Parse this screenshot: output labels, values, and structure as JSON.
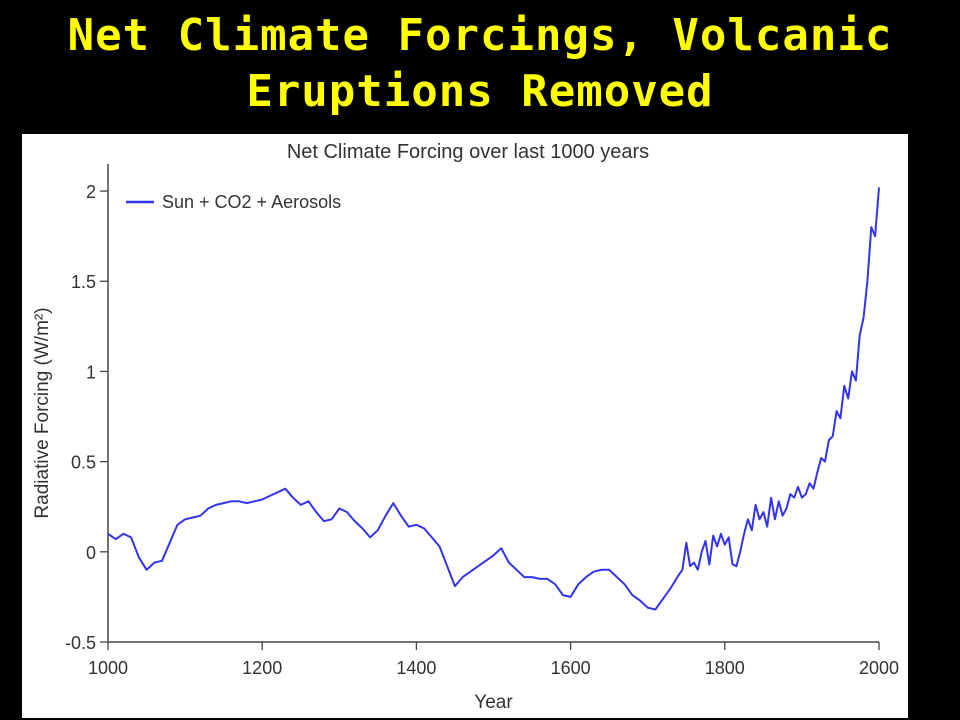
{
  "slide": {
    "title_line1": "Net Climate Forcings, Volcanic",
    "title_line2": "Eruptions Removed"
  },
  "colors": {
    "background": "#000000",
    "title": "#FFFF00",
    "series": "#3333EE"
  },
  "chart_data": {
    "type": "line",
    "title": "Net Climate Forcing over last 1000 years",
    "xlabel": "Year",
    "ylabel": "Radiative Forcing (W/m²)",
    "xlim": [
      1000,
      2000
    ],
    "ylim": [
      -0.5,
      2.15
    ],
    "xticks": [
      1000,
      1200,
      1400,
      1600,
      1800,
      2000
    ],
    "yticks": [
      -0.5,
      0,
      0.5,
      1,
      1.5,
      2
    ],
    "ytick_labels": [
      "-0.5",
      "0",
      "0.5",
      "1",
      "1.5",
      "2"
    ],
    "grid": false,
    "legend_position": "top-left",
    "series": [
      {
        "name": "Sun + CO2 + Aerosols",
        "color": "#3333EE",
        "x": [
          1000,
          1010,
          1020,
          1030,
          1040,
          1050,
          1060,
          1070,
          1080,
          1090,
          1100,
          1110,
          1120,
          1130,
          1140,
          1150,
          1160,
          1170,
          1180,
          1190,
          1200,
          1210,
          1220,
          1230,
          1240,
          1250,
          1260,
          1270,
          1280,
          1290,
          1300,
          1310,
          1320,
          1330,
          1340,
          1350,
          1360,
          1370,
          1380,
          1390,
          1400,
          1410,
          1420,
          1430,
          1440,
          1450,
          1460,
          1470,
          1480,
          1490,
          1500,
          1510,
          1520,
          1530,
          1540,
          1550,
          1560,
          1570,
          1580,
          1590,
          1600,
          1610,
          1620,
          1630,
          1640,
          1650,
          1660,
          1670,
          1680,
          1690,
          1700,
          1710,
          1720,
          1730,
          1740,
          1745,
          1750,
          1755,
          1760,
          1765,
          1770,
          1775,
          1780,
          1785,
          1790,
          1795,
          1800,
          1805,
          1810,
          1815,
          1820,
          1825,
          1830,
          1835,
          1840,
          1845,
          1850,
          1855,
          1860,
          1865,
          1870,
          1875,
          1880,
          1885,
          1890,
          1895,
          1900,
          1905,
          1910,
          1915,
          1920,
          1925,
          1930,
          1935,
          1940,
          1945,
          1950,
          1955,
          1960,
          1965,
          1970,
          1975,
          1980,
          1985,
          1990,
          1995,
          2000
        ],
        "y": [
          0.1,
          0.07,
          0.1,
          0.08,
          -0.03,
          -0.1,
          -0.06,
          -0.05,
          0.05,
          0.15,
          0.18,
          0.19,
          0.2,
          0.24,
          0.26,
          0.27,
          0.28,
          0.28,
          0.27,
          0.28,
          0.29,
          0.31,
          0.33,
          0.35,
          0.3,
          0.26,
          0.28,
          0.22,
          0.17,
          0.18,
          0.24,
          0.22,
          0.17,
          0.13,
          0.08,
          0.12,
          0.2,
          0.27,
          0.2,
          0.14,
          0.15,
          0.13,
          0.08,
          0.03,
          -0.08,
          -0.19,
          -0.14,
          -0.11,
          -0.08,
          -0.05,
          -0.02,
          0.02,
          -0.06,
          -0.1,
          -0.14,
          -0.14,
          -0.15,
          -0.15,
          -0.18,
          -0.24,
          -0.25,
          -0.18,
          -0.14,
          -0.11,
          -0.1,
          -0.1,
          -0.14,
          -0.18,
          -0.24,
          -0.27,
          -0.31,
          -0.32,
          -0.26,
          -0.2,
          -0.13,
          -0.1,
          0.05,
          -0.08,
          -0.06,
          -0.1,
          0.0,
          0.06,
          -0.07,
          0.09,
          0.03,
          0.1,
          0.04,
          0.08,
          -0.07,
          -0.08,
          0.0,
          0.1,
          0.18,
          0.12,
          0.26,
          0.18,
          0.22,
          0.14,
          0.3,
          0.18,
          0.28,
          0.2,
          0.24,
          0.32,
          0.3,
          0.36,
          0.3,
          0.32,
          0.38,
          0.35,
          0.44,
          0.52,
          0.5,
          0.62,
          0.64,
          0.78,
          0.74,
          0.92,
          0.85,
          1.0,
          0.95,
          1.2,
          1.3,
          1.5,
          1.8,
          1.75,
          2.02
        ]
      }
    ]
  }
}
